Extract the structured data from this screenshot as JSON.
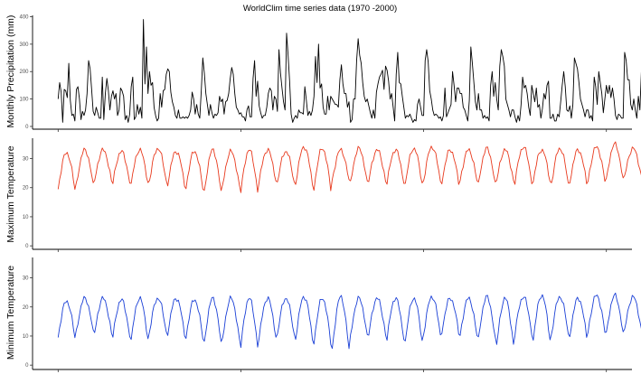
{
  "title": "WorldClim time series data (1970 -2000)",
  "chart_data": [
    {
      "type": "line",
      "ylabel": "Monthly Precipitation (mm)",
      "ylim": [
        -10,
        405
      ],
      "yticks": [
        0,
        100,
        200,
        300,
        400
      ],
      "xlim": [
        1968.6,
        2001.4
      ],
      "xticks": [
        1970,
        1980,
        1990,
        2000
      ],
      "x_tick_labels_shown": false,
      "grid": false,
      "series": [
        {
          "color": "#000000",
          "x_start": 1970,
          "x_step_months": 1,
          "values": [
            100,
            160,
            125,
            15,
            135,
            130,
            105,
            230,
            95,
            40,
            45,
            20,
            135,
            145,
            100,
            25,
            55,
            40,
            60,
            120,
            240,
            210,
            135,
            55,
            40,
            70,
            50,
            30,
            30,
            180,
            25,
            120,
            175,
            130,
            60,
            110,
            130,
            100,
            120,
            40,
            60,
            140,
            130,
            110,
            25,
            40,
            15,
            45,
            145,
            180,
            25,
            35,
            80,
            45,
            70,
            30,
            390,
            155,
            290,
            120,
            200,
            150,
            160,
            70,
            40,
            20,
            30,
            120,
            70,
            130,
            135,
            190,
            210,
            200,
            125,
            90,
            70,
            40,
            30,
            60,
            30,
            30,
            35,
            30,
            35,
            30,
            40,
            60,
            125,
            100,
            45,
            80,
            45,
            30,
            130,
            250,
            195,
            120,
            80,
            40,
            80,
            50,
            30,
            45,
            40,
            50,
            110,
            90,
            100,
            45,
            90,
            95,
            120,
            175,
            215,
            190,
            120,
            70,
            60,
            45,
            50,
            35,
            35,
            20,
            60,
            75,
            35,
            35,
            175,
            240,
            110,
            165,
            75,
            50,
            30,
            40,
            40,
            70,
            120,
            140,
            130,
            60,
            110,
            100,
            55,
            280,
            195,
            140,
            90,
            60,
            340,
            260,
            165,
            45,
            15,
            30,
            40,
            30,
            60,
            50,
            50,
            45,
            145,
            95,
            40,
            55,
            40,
            60,
            110,
            255,
            160,
            300,
            140,
            155,
            70,
            45,
            45,
            110,
            60,
            110,
            100,
            90,
            80,
            80,
            70,
            170,
            225,
            155,
            120,
            120,
            70,
            90,
            15,
            25,
            100,
            100,
            240,
            320,
            260,
            230,
            160,
            110,
            90,
            100,
            75,
            50,
            30,
            60,
            30,
            125,
            155,
            180,
            190,
            205,
            135,
            220,
            205,
            165,
            100,
            120,
            70,
            20,
            190,
            270,
            160,
            155,
            110,
            70,
            30,
            40,
            35,
            45,
            30,
            15,
            25,
            20,
            80,
            100,
            70,
            40,
            40,
            240,
            280,
            235,
            130,
            100,
            60,
            40,
            45,
            40,
            30,
            35,
            20,
            40,
            140,
            35,
            50,
            65,
            80,
            200,
            150,
            90,
            140,
            140,
            120,
            120,
            70,
            60,
            40,
            20,
            95,
            290,
            230,
            160,
            90,
            60,
            120,
            60,
            60,
            30,
            40,
            30,
            35,
            20,
            150,
            200,
            110,
            160,
            100,
            60,
            220,
            280,
            255,
            220,
            100,
            80,
            60,
            35,
            60,
            60,
            35,
            15,
            40,
            20,
            80,
            180,
            140,
            150,
            120,
            70,
            40,
            150,
            120,
            90,
            140,
            70,
            80,
            30,
            65,
            120,
            100,
            150,
            165,
            30,
            30,
            45,
            20,
            20,
            45,
            35,
            90,
            150,
            200,
            145,
            60,
            55,
            75,
            30,
            80,
            250,
            230,
            210,
            160,
            100,
            80,
            60,
            35,
            60,
            60,
            30,
            40,
            20,
            180,
            145,
            80,
            200,
            160,
            120,
            50,
            100,
            150,
            120,
            150,
            105,
            140,
            100,
            40,
            25,
            45,
            40,
            30,
            30,
            270,
            240,
            170,
            170,
            80,
            60,
            100,
            60,
            30,
            110,
            60,
            200,
            120,
            130,
            85,
            40,
            25,
            35,
            80,
            130,
            230,
            270,
            200,
            180,
            140,
            100,
            110,
            70,
            60,
            50,
            120,
            150,
            210,
            160,
            155,
            100,
            55,
            45,
            60,
            30,
            35,
            70,
            95,
            180,
            120,
            240,
            150,
            140,
            90,
            160,
            140,
            120,
            80,
            60,
            40,
            130,
            200,
            140,
            220,
            160,
            120,
            70,
            65,
            50,
            30,
            45,
            40,
            15,
            40,
            170,
            200,
            120,
            120,
            50,
            235,
            210,
            210,
            150,
            100,
            60,
            40,
            90,
            40,
            20,
            50,
            55,
            160,
            160,
            150,
            120,
            60,
            55,
            50
          ]
        }
      ]
    },
    {
      "type": "line",
      "ylabel": "Maximum Temperature",
      "ylim": [
        -1.2,
        37
      ],
      "yticks": [
        0,
        10,
        20,
        30
      ],
      "xlim": [
        1968.6,
        2001.4
      ],
      "xticks": [
        1970,
        1980,
        1990,
        2000
      ],
      "x_tick_labels_shown": false,
      "grid": false,
      "series": [
        {
          "color": "#e8391d",
          "x_start": 1970,
          "x_step_months": 1,
          "base": 26.2,
          "amplitude": 7,
          "trend_per_decade": 0.45,
          "phase_month": 0,
          "extremes": [
            [
              18,
              32
            ],
            [
              19.5,
              33
            ],
            [
              21,
              33
            ],
            [
              20.5,
              32.5
            ],
            [
              20,
              33
            ],
            [
              21,
              33.5
            ],
            [
              20,
              32.5
            ],
            [
              18.5,
              32.5
            ],
            [
              16.5,
              33
            ],
            [
              19,
              32.5
            ],
            [
              17,
              33
            ],
            [
              21,
              33
            ],
            [
              20.5,
              32.5
            ],
            [
              20,
              34
            ],
            [
              18,
              33.5
            ],
            [
              21,
              33
            ],
            [
              20,
              33.5
            ],
            [
              21,
              33
            ],
            [
              20.5,
              33
            ],
            [
              20,
              33.5
            ],
            [
              21,
              34
            ],
            [
              20.5,
              33
            ],
            [
              21,
              33
            ],
            [
              19.5,
              33.5
            ],
            [
              21,
              33
            ],
            [
              20.5,
              34
            ],
            [
              21,
              33
            ],
            [
              20,
              33.5
            ],
            [
              20.5,
              33
            ],
            [
              21,
              34
            ],
            [
              21,
              35
            ],
            [
              22.5,
              33.5
            ]
          ]
        }
      ]
    },
    {
      "type": "line",
      "ylabel": "Minimum Temperature",
      "ylim": [
        -1.5,
        37
      ],
      "yticks": [
        0,
        10,
        20,
        30
      ],
      "xlim": [
        1968.6,
        2001.4
      ],
      "xticks": [
        1970,
        1980,
        1990,
        2000
      ],
      "x_tick_labels_shown": false,
      "grid": false,
      "series": [
        {
          "color": "#1a3fd6",
          "x_start": 1970,
          "x_step_months": 1,
          "base": 15.5,
          "amplitude": 7.2,
          "trend_per_decade": 0.3,
          "phase_month": 0,
          "extremes": [
            [
              8,
              22
            ],
            [
              10,
              23
            ],
            [
              9.5,
              23
            ],
            [
              8.5,
              22.5
            ],
            [
              7,
              23
            ],
            [
              10,
              23
            ],
            [
              9.5,
              23
            ],
            [
              8,
              22.5
            ],
            [
              5.5,
              23
            ],
            [
              7,
              23
            ],
            [
              4.5,
              23
            ],
            [
              8,
              23
            ],
            [
              9,
              23
            ],
            [
              7.5,
              23.5
            ],
            [
              6,
              23
            ],
            [
              3,
              23.5
            ],
            [
              8,
              23
            ],
            [
              9,
              23
            ],
            [
              7.5,
              23
            ],
            [
              6.5,
              23
            ],
            [
              9,
              23.5
            ],
            [
              10,
              23
            ],
            [
              8.5,
              23
            ],
            [
              7,
              23.5
            ],
            [
              5,
              23
            ],
            [
              9.5,
              23.5
            ],
            [
              7,
              24
            ],
            [
              9,
              23.5
            ],
            [
              8.5,
              23
            ],
            [
              10,
              24
            ],
            [
              9,
              24
            ],
            [
              10.5,
              23.5
            ]
          ]
        }
      ]
    }
  ]
}
